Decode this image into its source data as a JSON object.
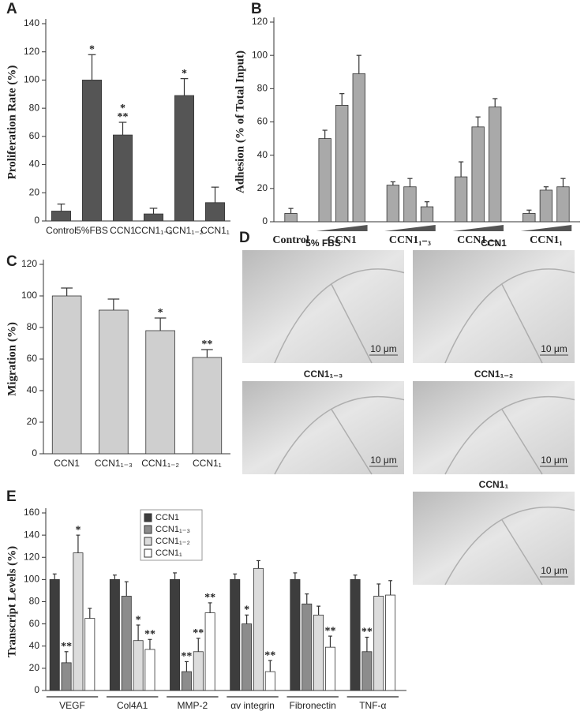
{
  "chart_data": [
    {
      "type": "bar",
      "panel": "A",
      "ylabel": "Proliferation Rate (%)",
      "color": "#555555",
      "categories": [
        "Control",
        "5%FBS",
        "CCN1",
        "CCN1₁₋₃",
        "CCN1₁₋₂",
        "CCN1₁"
      ],
      "values": [
        7,
        100,
        61,
        5,
        89,
        13
      ],
      "errors": [
        5,
        18,
        9,
        4,
        12,
        11
      ],
      "sig": [
        null,
        [
          "*"
        ],
        [
          "*",
          "**"
        ],
        null,
        [
          "*"
        ],
        null
      ],
      "ylim": [
        0,
        140
      ],
      "yticks": [
        0,
        20,
        40,
        60,
        80,
        100,
        120,
        140
      ]
    },
    {
      "type": "bar",
      "panel": "B",
      "ylabel": "Adhesion (% of Total Input)",
      "color": "#a9a9a9",
      "groups": [
        {
          "name": "Control",
          "values": [
            5
          ],
          "errors": [
            3
          ]
        },
        {
          "name": "CCN1",
          "values": [
            50,
            70,
            89
          ],
          "errors": [
            5,
            7,
            11
          ]
        },
        {
          "name": "CCN1₁₋₃",
          "values": [
            22,
            21,
            9
          ],
          "errors": [
            2,
            5,
            3
          ]
        },
        {
          "name": "CCN1₁₋₂",
          "values": [
            27,
            57,
            69
          ],
          "errors": [
            9,
            6,
            5
          ]
        },
        {
          "name": "CCN1₁",
          "values": [
            5,
            19,
            21
          ],
          "errors": [
            2,
            2,
            5
          ]
        }
      ],
      "ylim": [
        0,
        120
      ],
      "yticks": [
        0,
        20,
        40,
        60,
        80,
        100,
        120
      ]
    },
    {
      "type": "bar",
      "panel": "C",
      "ylabel": "Migration (%)",
      "color": "#cfcfcf",
      "categories": [
        "CCN1",
        "CCN1₁₋₃",
        "CCN1₁₋₂",
        "CCN1₁"
      ],
      "values": [
        100,
        91,
        78,
        61
      ],
      "errors": [
        5,
        7,
        8,
        5
      ],
      "sig": [
        null,
        null,
        [
          "*"
        ],
        [
          "**"
        ]
      ],
      "ylim": [
        0,
        120
      ],
      "yticks": [
        0,
        20,
        40,
        60,
        80,
        100,
        120
      ]
    },
    {
      "type": "bar",
      "panel": "E",
      "ylabel": "Transcript Levels (%)",
      "categories": [
        "VEGF",
        "Col4A1",
        "MMP-2",
        "αv integrin",
        "Fibronectin",
        "TNF-α"
      ],
      "series": [
        {
          "name": "CCN1",
          "color": "#3d3d3d",
          "values": [
            100,
            100,
            100,
            100,
            100,
            100
          ],
          "errors": [
            5,
            4,
            6,
            5,
            6,
            4
          ],
          "sig": [
            null,
            null,
            null,
            null,
            null,
            null
          ]
        },
        {
          "name": "CCN1₁₋₃",
          "color": "#8c8c8c",
          "values": [
            25,
            85,
            17,
            60,
            78,
            35
          ],
          "errors": [
            10,
            13,
            9,
            8,
            9,
            13
          ],
          "sig": [
            "**",
            null,
            "**",
            "*",
            null,
            "**"
          ]
        },
        {
          "name": "CCN1₁₋₂",
          "color": "#dcdcdc",
          "values": [
            124,
            45,
            35,
            110,
            68,
            85
          ],
          "errors": [
            16,
            14,
            12,
            7,
            8,
            11
          ],
          "sig": [
            "*",
            "*",
            "**",
            null,
            null,
            null
          ]
        },
        {
          "name": "CCN1₁",
          "color": "#ffffff",
          "values": [
            65,
            37,
            70,
            17,
            39,
            86
          ],
          "errors": [
            9,
            9,
            9,
            10,
            10,
            13
          ],
          "sig": [
            null,
            "**",
            "**",
            "**",
            "**",
            null
          ]
        }
      ],
      "ylim": [
        0,
        160
      ],
      "yticks": [
        0,
        20,
        40,
        60,
        80,
        100,
        120,
        140,
        160
      ]
    }
  ],
  "micrographs": {
    "panel": "D",
    "images": [
      {
        "title": "5% FBS",
        "scale": "10 μm"
      },
      {
        "title": "CCN1",
        "scale": "10 μm"
      },
      {
        "title": "CCN1₁₋₃",
        "scale": "10 μm"
      },
      {
        "title": "CCN1₁₋₂",
        "scale": "10 μm"
      },
      {
        "title": "CCN1₁",
        "scale": "10 μm"
      }
    ]
  }
}
